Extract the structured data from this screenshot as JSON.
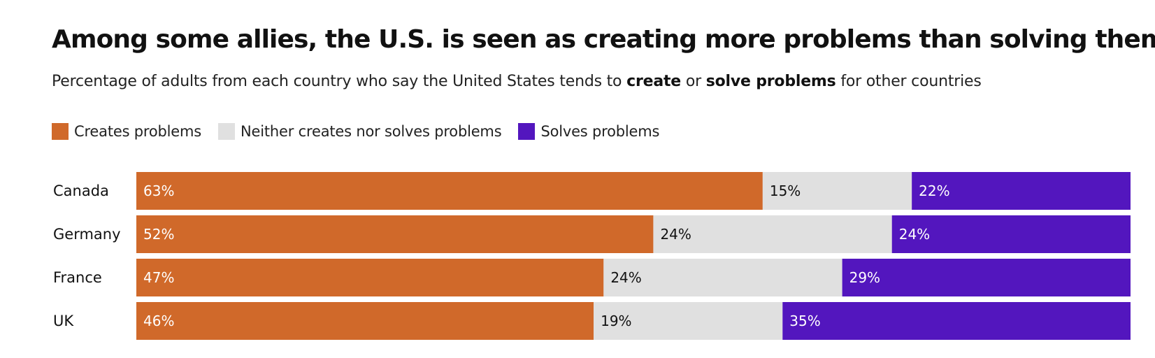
{
  "chart_data": {
    "type": "bar",
    "orientation": "horizontal-stacked",
    "title": "Among some allies, the U.S. is seen as creating more problems than solving them",
    "subtitle": {
      "part1": "Percentage of adults from each country who say the United States tends to ",
      "bold1": "create",
      "part2": " or ",
      "bold2": "solve problems",
      "part3": " for other countries"
    },
    "categories": [
      "Canada",
      "Germany",
      "France",
      "UK"
    ],
    "series": [
      {
        "name": "Creates problems",
        "color": "#D0692A",
        "label_color": "#ffffff",
        "values": [
          63,
          52,
          47,
          46
        ]
      },
      {
        "name": "Neither creates nor solves problems",
        "color": "#E0E0E0",
        "label_color": "#111111",
        "values": [
          15,
          24,
          24,
          19
        ]
      },
      {
        "name": "Solves problems",
        "color": "#5316BE",
        "label_color": "#ffffff",
        "values": [
          22,
          24,
          29,
          35
        ]
      }
    ],
    "value_suffix": "%",
    "xlim": [
      0,
      100
    ],
    "legend_position": "top-left",
    "grid": false
  }
}
